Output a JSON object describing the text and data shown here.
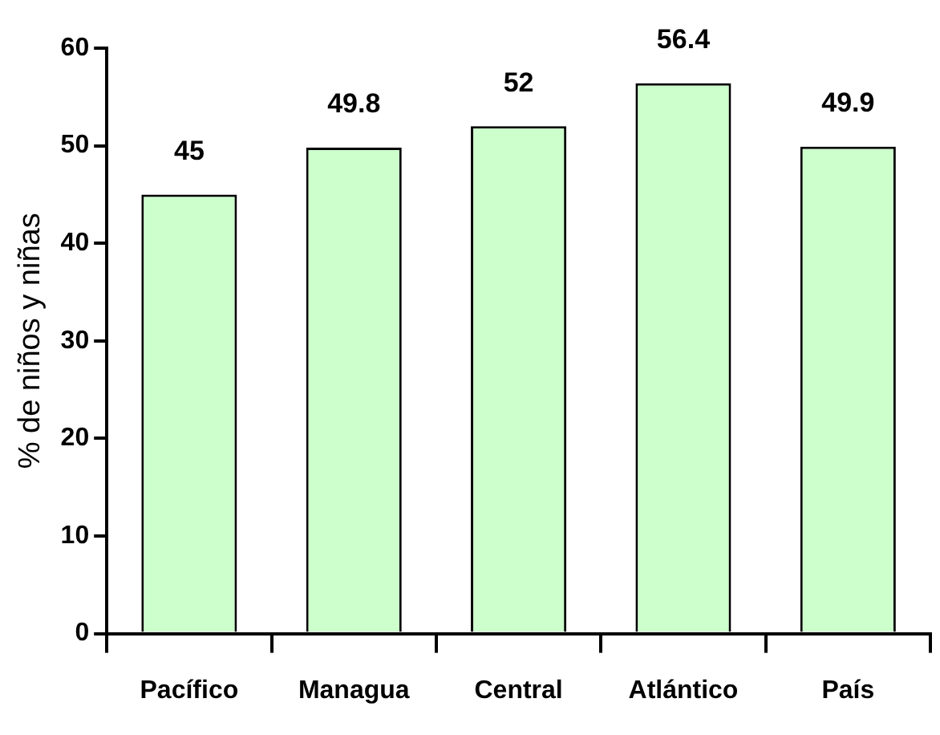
{
  "chart_data": {
    "type": "bar",
    "ylabel": "% de niños y niñas",
    "categories": [
      "Pacífico",
      "Managua",
      "Central",
      "Atlántico",
      "País"
    ],
    "values": [
      45,
      49.8,
      52,
      56.4,
      49.9
    ],
    "color": "#ccffcc",
    "ylim": [
      0,
      60
    ],
    "yticks": [
      0,
      10,
      20,
      30,
      40,
      50,
      60
    ],
    "grid": false,
    "data_labels": true
  }
}
